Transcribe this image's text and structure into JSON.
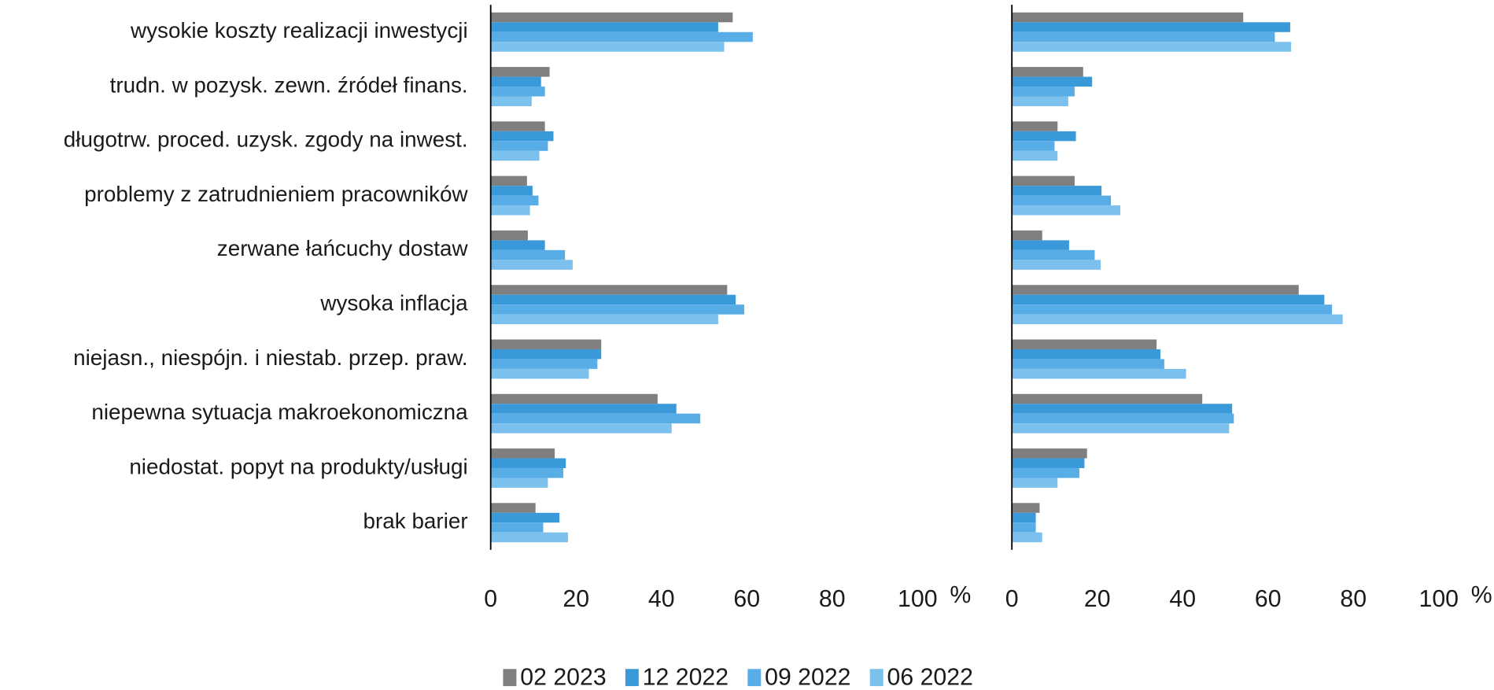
{
  "chart_data": [
    {
      "type": "hbar",
      "categories": [
        "wysokie koszty realizacji inwestycji",
        "trudn. w pozysk. zewn. źródeł finans.",
        "długotrw. proced. uzysk. zgody na inwest.",
        "problemy z zatrudnieniem pracowników",
        "zerwane łańcuchy dostaw",
        "wysoka inflacja",
        "niejasn., niespójn. i niestab. przep. praw.",
        "niepewna sytuacja makroekonomiczna",
        "niedostat. popyt na produkty/usługi",
        "brak barier"
      ],
      "series": [
        {
          "name": "02 2023",
          "color": "#7f7f7f",
          "values": [
            56.7,
            13.8,
            12.7,
            8.5,
            8.7,
            55.4,
            25.9,
            39.1,
            15.0,
            10.5
          ]
        },
        {
          "name": "12 2022",
          "color": "#3a99d8",
          "values": [
            53.3,
            11.8,
            14.7,
            9.8,
            12.7,
            57.4,
            25.9,
            43.5,
            17.6,
            16.1
          ]
        },
        {
          "name": "09 2022",
          "color": "#58ade6",
          "values": [
            61.4,
            12.7,
            13.4,
            11.2,
            17.4,
            59.4,
            25.0,
            49.1,
            17.0,
            12.3
          ]
        },
        {
          "name": "06 2022",
          "color": "#7cc0ee",
          "values": [
            54.7,
            9.6,
            11.4,
            9.2,
            19.2,
            53.3,
            23.0,
            42.4,
            13.4,
            18.1
          ]
        }
      ],
      "xlim": [
        0,
        100
      ],
      "xticks": [
        0,
        20,
        40,
        60,
        80,
        100
      ],
      "unit": "%"
    },
    {
      "type": "hbar",
      "series": [
        {
          "color": "#7f7f7f",
          "values": [
            54.2,
            16.7,
            10.7,
            14.7,
            7.1,
            67.2,
            33.9,
            44.6,
            17.6,
            6.5
          ]
        },
        {
          "color": "#3a99d8",
          "values": [
            65.2,
            18.8,
            15.0,
            21.0,
            13.4,
            73.2,
            34.8,
            51.6,
            17.0,
            5.6
          ]
        },
        {
          "color": "#58ade6",
          "values": [
            61.6,
            14.7,
            10.0,
            23.2,
            19.4,
            75.0,
            35.7,
            52.0,
            15.8,
            5.6
          ]
        },
        {
          "color": "#7cc0ee",
          "values": [
            65.4,
            13.2,
            10.7,
            25.4,
            20.8,
            77.5,
            40.8,
            50.9,
            10.7,
            7.1
          ]
        }
      ],
      "xlim": [
        0,
        100
      ],
      "xticks": [
        0,
        20,
        40,
        60,
        80,
        100
      ],
      "unit": "%"
    }
  ]
}
